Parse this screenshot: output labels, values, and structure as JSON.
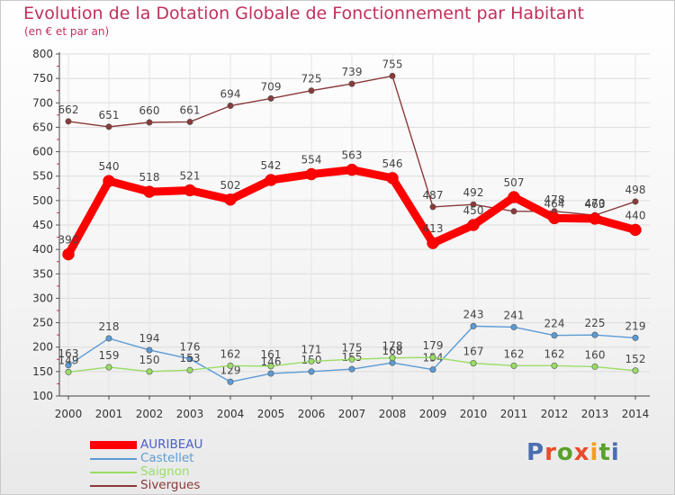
{
  "header": {
    "title": "Evolution de la Dotation Globale de Fonctionnement par Habitant",
    "subtitle": "(en € et par an)"
  },
  "logo": {
    "text": "Proxiti",
    "letter_colors": [
      "#4a6fb0",
      "#e84c2a",
      "#5aa02c",
      "#e84c2a",
      "#f0a020",
      "#5aa02c",
      "#4a6fb0"
    ]
  },
  "chart_data": {
    "type": "line",
    "title": "Evolution de la Dotation Globale de Fonctionnement par Habitant",
    "subtitle": "(en € et par an)",
    "xlabel": "",
    "ylabel": "",
    "ylim": [
      100,
      800
    ],
    "yticks": [
      100,
      150,
      200,
      250,
      300,
      350,
      400,
      450,
      500,
      550,
      600,
      650,
      700,
      750,
      800
    ],
    "grid": true,
    "legend_position": "bottom-left",
    "categories": [
      "2000",
      "2001",
      "2002",
      "2003",
      "2004",
      "2005",
      "2006",
      "2007",
      "2008",
      "2009",
      "2010",
      "2011",
      "2012",
      "2013",
      "2014"
    ],
    "series": [
      {
        "name": "Sivergues",
        "color": "#8a3a3a",
        "values": [
          662,
          651,
          660,
          661,
          694,
          709,
          725,
          739,
          755,
          487,
          492,
          478,
          478,
          470,
          498
        ],
        "labels": [
          "662",
          "651",
          "660",
          "661",
          "694",
          "709",
          "725",
          "739",
          "755",
          "487",
          "492",
          "",
          "478",
          "470",
          "498"
        ]
      },
      {
        "name": "AURIBEAU",
        "color": "#ff0000",
        "values": [
          390,
          540,
          518,
          521,
          502,
          542,
          554,
          563,
          546,
          413,
          450,
          507,
          464,
          463,
          440
        ],
        "labels": [
          "390",
          "540",
          "518",
          "521",
          "502",
          "542",
          "554",
          "563",
          "546",
          "413",
          "450",
          "507",
          "464",
          "463",
          "440"
        ]
      },
      {
        "name": "Castellet",
        "color": "#5b9bd5",
        "values": [
          163,
          218,
          194,
          176,
          129,
          146,
          150,
          155,
          168,
          154,
          243,
          241,
          224,
          225,
          219
        ],
        "labels": [
          "163",
          "218",
          "194",
          "176",
          "129",
          "146",
          "150",
          "155",
          "168",
          "154",
          "243",
          "241",
          "224",
          "225",
          "219"
        ]
      },
      {
        "name": "Saignon",
        "color": "#99dd66",
        "values": [
          149,
          159,
          150,
          153,
          162,
          161,
          171,
          175,
          178,
          179,
          167,
          162,
          162,
          160,
          152
        ],
        "labels": [
          "149",
          "159",
          "150",
          "153",
          "162",
          "161",
          "171",
          "175",
          "178",
          "179",
          "167",
          "162",
          "162",
          "160",
          "152"
        ]
      }
    ],
    "legend_order": [
      "AURIBEAU",
      "Castellet",
      "Saignon",
      "Sivergues"
    ]
  }
}
